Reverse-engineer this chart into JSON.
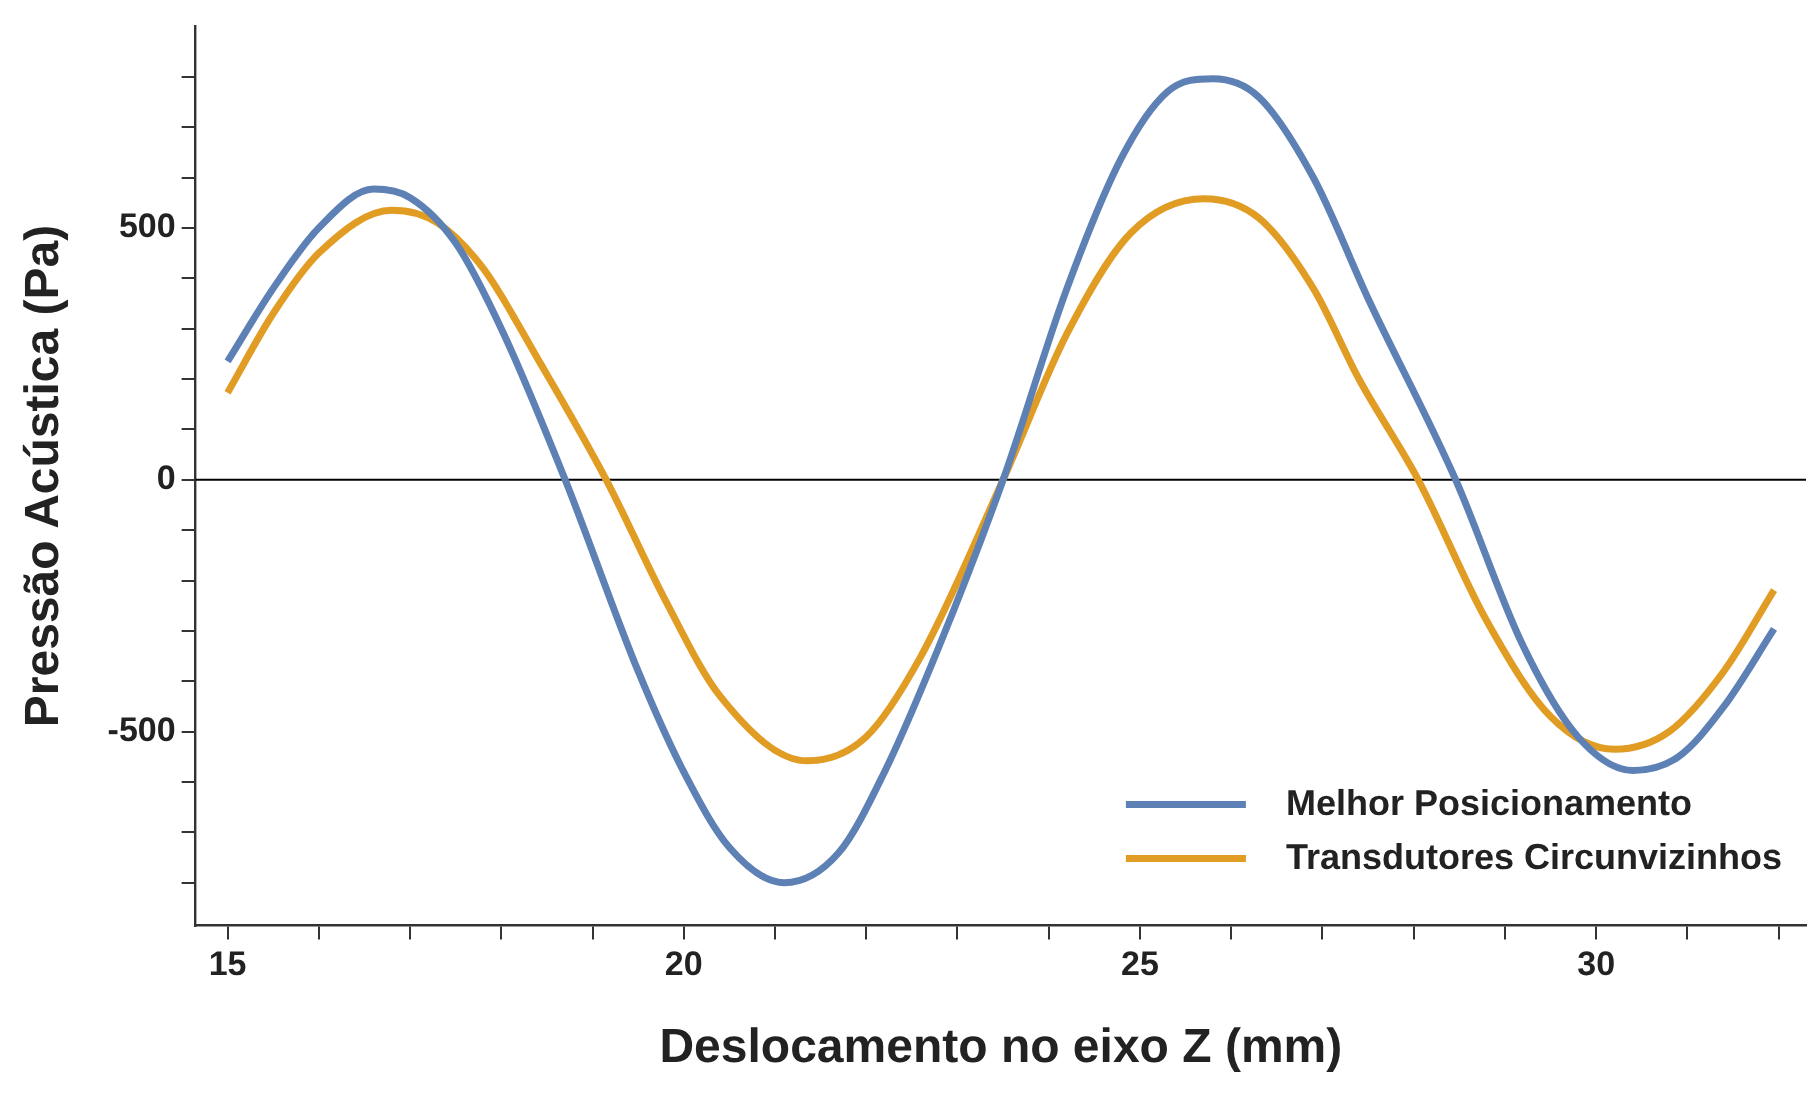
{
  "chart_data": {
    "type": "line",
    "xlabel": "Deslocamento no eixo Z (mm)",
    "ylabel": "Pressão Acústica (Pa)",
    "xlim": [
      14.65,
      32.3
    ],
    "ylim": [
      -885,
      900
    ],
    "xticks": [
      15,
      {
        "value": 16,
        "label": null
      },
      {
        "value": 17,
        "label": null
      },
      {
        "value": 18,
        "label": null
      },
      {
        "value": 19,
        "label": null
      },
      20,
      {
        "value": 21,
        "label": null
      },
      {
        "value": 22,
        "label": null
      },
      {
        "value": 23,
        "label": null
      },
      {
        "value": 24,
        "label": null
      },
      25,
      {
        "value": 26,
        "label": null
      },
      {
        "value": 27,
        "label": null
      },
      {
        "value": 28,
        "label": null
      },
      {
        "value": 29,
        "label": null
      },
      30,
      {
        "value": 31,
        "label": null
      },
      {
        "value": 32,
        "label": null
      }
    ],
    "yticks": [
      {
        "value": -800,
        "label": null
      },
      {
        "value": -700,
        "label": null
      },
      {
        "value": -600,
        "label": null
      },
      -500,
      {
        "value": -400,
        "label": null
      },
      {
        "value": -300,
        "label": null
      },
      {
        "value": -200,
        "label": null
      },
      {
        "value": -100,
        "label": null
      },
      0,
      {
        "value": 100,
        "label": null
      },
      {
        "value": 200,
        "label": null
      },
      {
        "value": 300,
        "label": null
      },
      {
        "value": 400,
        "label": null
      },
      500,
      {
        "value": 600,
        "label": null
      },
      {
        "value": 700,
        "label": null
      },
      {
        "value": 800,
        "label": null
      }
    ],
    "grid": false,
    "legend": "bottom right",
    "marker": "none",
    "line_style": "solid",
    "ref_lines": [
      {
        "axis": "y",
        "value": 0,
        "color": "#000000"
      }
    ],
    "series": [
      {
        "name": "Melhor Posicionamento",
        "color": "#5e81b5",
        "x": [
          15,
          15.5,
          16,
          16.6,
          17,
          17.5,
          18,
          18.7,
          19.5,
          20,
          20.5,
          21.1,
          21.7,
          22.2,
          22.8,
          23.5,
          24.2,
          24.8,
          25.3,
          25.8,
          26.3,
          26.9,
          27.5,
          28.46,
          29.2,
          29.8,
          30.4,
          30.9,
          31.4,
          31.95
        ],
        "values": [
          235,
          380,
          500,
          577,
          560,
          470,
          300,
          0,
          -380,
          -580,
          -730,
          -800,
          -740,
          -580,
          -330,
          0,
          380,
          640,
          770,
          796,
          760,
          600,
          360,
          0,
          -330,
          -510,
          -577,
          -550,
          -450,
          -296
        ]
      },
      {
        "name": "Transdutores Circunvizinhos",
        "color": "#e19c24",
        "x": [
          15,
          15.5,
          16,
          16.8,
          17.3,
          17.8,
          18.4,
          19.15,
          19.8,
          20.4,
          21.35,
          22,
          22.6,
          23.5,
          24.2,
          24.9,
          25.7,
          26.3,
          26.9,
          27.4,
          28.05,
          28.8,
          29.5,
          30.2,
          30.8,
          31.4,
          31.95
        ],
        "values": [
          173,
          330,
          450,
          535,
          510,
          420,
          240,
          0,
          -240,
          -430,
          -558,
          -510,
          -350,
          0,
          290,
          490,
          558,
          520,
          380,
          200,
          0,
          -280,
          -470,
          -535,
          -500,
          -380,
          -219
        ]
      }
    ]
  }
}
